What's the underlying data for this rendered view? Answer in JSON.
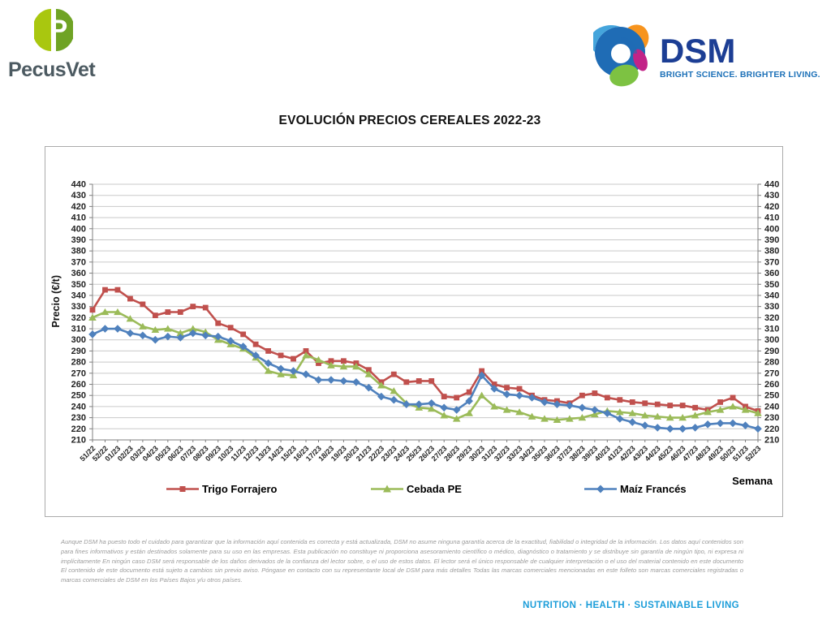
{
  "header": {
    "pecusvet_text": "PecusVet",
    "pecusvet_icon_letter": "P",
    "dsm_wordmark": "DSM",
    "dsm_tagline": "BRIGHT SCIENCE. BRIGHTER LIVING."
  },
  "title": "EVOLUCIÓN PRECIOS CEREALES 2022-23",
  "chart_data": {
    "type": "line",
    "title": "EVOLUCIÓN PRECIOS CEREALES 2022-23",
    "xlabel": "Semana",
    "ylabel": "Precio (€/t)",
    "ylim": [
      210,
      440
    ],
    "ytick_step": 10,
    "grid": true,
    "legend_position": "bottom",
    "colors": {
      "axis": "#7f7f7f",
      "gridline": "#c9c9c9"
    },
    "categories": [
      "51/22",
      "52/22",
      "01/23",
      "02/23",
      "03/23",
      "04/23",
      "05/23",
      "06/23",
      "07/23",
      "08/23",
      "09/23",
      "10/23",
      "11/23",
      "12/23",
      "13/23",
      "14/23",
      "15/23",
      "16/23",
      "17/23",
      "18/23",
      "19/23",
      "20/23",
      "21/23",
      "22/23",
      "23/23",
      "24/23",
      "25/23",
      "26/23",
      "27/23",
      "28/23",
      "29/23",
      "30/23",
      "31/23",
      "32/23",
      "33/23",
      "34/23",
      "35/23",
      "36/23",
      "37/23",
      "38/23",
      "39/23",
      "40/23",
      "41/23",
      "42/23",
      "43/23",
      "44/23",
      "45/23",
      "46/23",
      "47/23",
      "48/23",
      "49/23",
      "50/23",
      "51/23",
      "52/23"
    ],
    "series": [
      {
        "name": "Trigo Forrajero",
        "color": "#c0504d",
        "marker": "square",
        "values": [
          327,
          345,
          345,
          337,
          332,
          322,
          325,
          325,
          330,
          329,
          315,
          311,
          305,
          296,
          290,
          286,
          283,
          290,
          279,
          281,
          281,
          279,
          273,
          262,
          269,
          262,
          263,
          263,
          249,
          248,
          253,
          272,
          260,
          257,
          256,
          250,
          246,
          245,
          243,
          250,
          252,
          248,
          246,
          244,
          243,
          242,
          241,
          241,
          239,
          237,
          244,
          248,
          240,
          236
        ]
      },
      {
        "name": "Cebada PE",
        "color": "#9bbb59",
        "marker": "triangle",
        "values": [
          320,
          325,
          325,
          319,
          312,
          309,
          310,
          306,
          310,
          307,
          300,
          296,
          292,
          284,
          272,
          269,
          268,
          286,
          282,
          277,
          276,
          276,
          269,
          259,
          254,
          243,
          239,
          238,
          232,
          229,
          234,
          250,
          240,
          237,
          235,
          231,
          229,
          228,
          229,
          230,
          233,
          236,
          235,
          234,
          232,
          231,
          230,
          230,
          232,
          235,
          237,
          240,
          237,
          234
        ]
      },
      {
        "name": "Maíz Francés",
        "color": "#4f81bd",
        "marker": "diamond",
        "values": [
          305,
          310,
          310,
          306,
          304,
          300,
          303,
          302,
          306,
          304,
          303,
          299,
          294,
          286,
          279,
          274,
          272,
          269,
          264,
          264,
          263,
          262,
          257,
          249,
          246,
          242,
          242,
          243,
          239,
          237,
          245,
          268,
          256,
          251,
          250,
          248,
          244,
          242,
          241,
          239,
          237,
          234,
          229,
          226,
          223,
          221,
          220,
          220,
          221,
          224,
          225,
          225,
          223,
          220
        ]
      }
    ]
  },
  "footer": {
    "disclaimer": "Aunque DSM ha puesto todo el cuidado para garantizar que la información aquí contenida es correcta y está actualizada, DSM no asume ninguna garantía acerca de la exactitud, fiabilidad o integridad de la información. Los datos aquí contenidos son para fines informativos y están destinados solamente para su uso en las empresas. Esta publicación no constituye ni proporciona asesoramiento científico o médico, diagnóstico o tratamiento y se distribuye sin garantía de ningún tipo, ni expresa ni implícitamente En ningún caso DSM será responsable de los daños derivados de la confianza del lector sobre, o el uso de estos datos. El lector será el único responsable de cualquier interpretación o el uso del material contenido en este documento El contenido de este documento está sujeto a cambios sin previo aviso. Póngase en contacto con su representante local de DSM para más detalles Todas las marcas comerciales mencionadas en este folleto son marcas comerciales registradas o marcas comerciales de DSM en los Países Bajos y/u otros países.",
    "slogan": "NUTRITION · HEALTH · SUSTAINABLE LIVING"
  }
}
